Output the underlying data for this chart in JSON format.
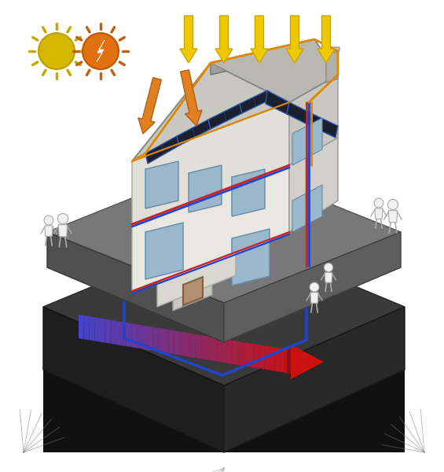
{
  "bg_color": "#ffffff",
  "pipe_red": "#cc2222",
  "pipe_blue": "#2244cc",
  "pipe_orange": "#dd8800",
  "arrow_yellow": "#f0c800",
  "arrow_orange": "#e08020",
  "sun_yellow": "#d4b800",
  "sun_orange": "#e07010",
  "ground_very_dark": "#111111",
  "ground_dark": "#1e1e1e",
  "ground_mid": "#2a2a2a",
  "ground_top_dark": "#383838",
  "ground_surface_grey": "#666666",
  "ground_surface_light": "#888888",
  "house_wall_light": "#e8e8e0",
  "house_wall_mid": "#d0d0c8",
  "house_wall_dark": "#b8b8b0",
  "roof_light": "#c0c0b8",
  "roof_mid": "#a0a0a0",
  "roof_dark": "#808080",
  "solar_dark": "#1a2030",
  "solar_blue": "#2a3a60",
  "window_blue": "#9ab8cc",
  "chimney_col": "#b8b8b8",
  "figure_white": "#f0f0f0",
  "figure_stroke": "#aaaaaa"
}
